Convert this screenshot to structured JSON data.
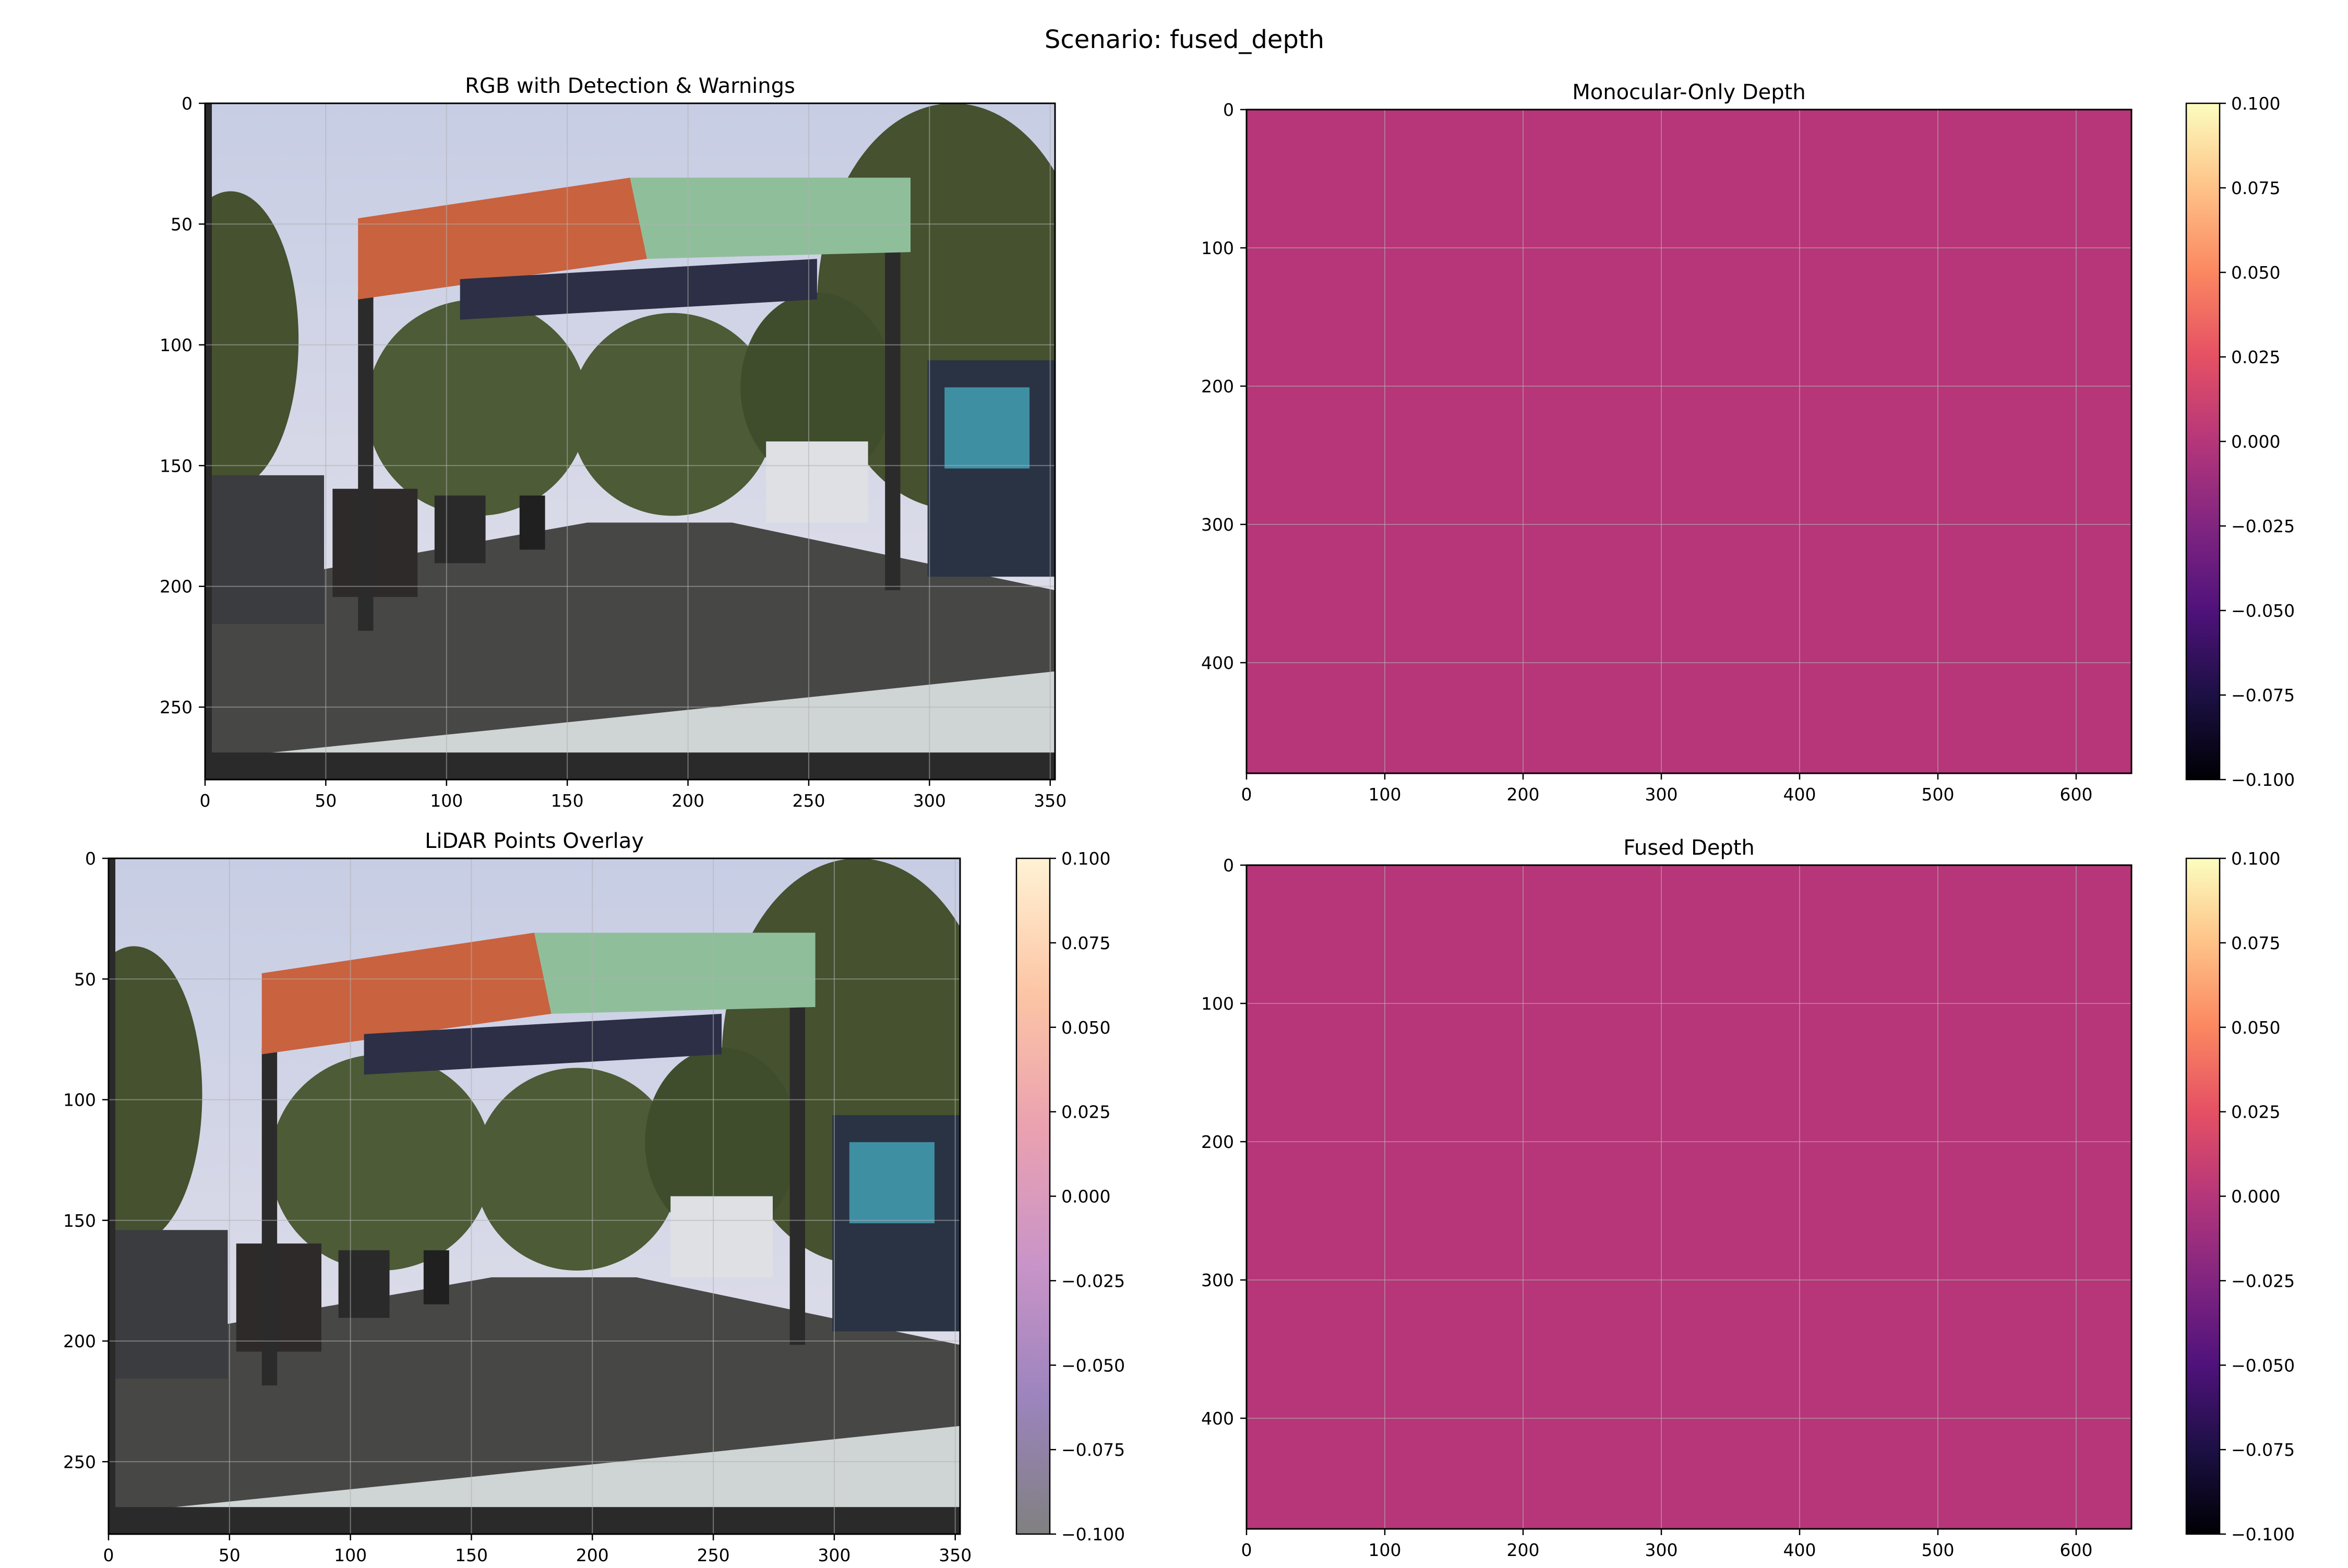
{
  "figure": {
    "suptitle": "Scenario: fused_depth"
  },
  "colors": {
    "frame": "#000000",
    "grid": "#b0b0b0",
    "heatmap_fill": "#b63679",
    "sky_top": "#c7cde4",
    "sky_bottom": "#e4e2ea",
    "road": "#474746",
    "trees": "#4d5b36",
    "billboard_orange": "#c9623f",
    "billboard_green": "#8fbf9a",
    "banner_dark": "#2c2f45",
    "dashboard": "#cfd4d4",
    "magma": [
      "#000004",
      "#1c1044",
      "#4f127b",
      "#812581",
      "#b5367a",
      "#e55064",
      "#fb8761",
      "#fec287",
      "#fcfdbf"
    ],
    "lidar_cmap": [
      "#808080",
      "#9c84bd",
      "#c994c8",
      "#eaa1b0",
      "#fcc5a5",
      "#fff2d4"
    ]
  },
  "chart_data": [
    {
      "type": "image",
      "title": "RGB with Detection & Warnings",
      "xlim": [
        0,
        352
      ],
      "ylim": [
        280,
        0
      ],
      "xticks": [
        0,
        50,
        100,
        150,
        200,
        250,
        300,
        350
      ],
      "yticks": [
        0,
        50,
        100,
        150,
        200,
        250
      ],
      "grid": true
    },
    {
      "type": "heatmap",
      "title": "Monocular-Only Depth",
      "xlim": [
        0,
        640
      ],
      "ylim": [
        480,
        0
      ],
      "xticks": [
        0,
        100,
        200,
        300,
        400,
        500,
        600
      ],
      "yticks": [
        0,
        100,
        200,
        300,
        400
      ],
      "grid": true,
      "value": 0.0,
      "colorbar": {
        "cmap": "magma",
        "range": [
          -0.1,
          0.1
        ],
        "ticks": [
          "0.100",
          "0.075",
          "0.050",
          "0.025",
          "0.000",
          "−0.025",
          "−0.050",
          "−0.075",
          "−0.100"
        ]
      }
    },
    {
      "type": "image",
      "title": "LiDAR Points Overlay",
      "xlim": [
        0,
        352
      ],
      "ylim": [
        280,
        0
      ],
      "xticks": [
        0,
        50,
        100,
        150,
        200,
        250,
        300,
        350
      ],
      "yticks": [
        0,
        50,
        100,
        150,
        200,
        250
      ],
      "grid": true,
      "colorbar": {
        "cmap": "lidar",
        "range": [
          -0.1,
          0.1
        ],
        "ticks": [
          "0.100",
          "0.075",
          "0.050",
          "0.025",
          "0.000",
          "−0.025",
          "−0.050",
          "−0.075",
          "−0.100"
        ]
      }
    },
    {
      "type": "heatmap",
      "title": "Fused Depth",
      "xlim": [
        0,
        640
      ],
      "ylim": [
        480,
        0
      ],
      "xticks": [
        0,
        100,
        200,
        300,
        400,
        500,
        600
      ],
      "yticks": [
        0,
        100,
        200,
        300,
        400
      ],
      "grid": true,
      "value": 0.0,
      "colorbar": {
        "cmap": "magma",
        "range": [
          -0.1,
          0.1
        ],
        "ticks": [
          "0.100",
          "0.075",
          "0.050",
          "0.025",
          "0.000",
          "−0.025",
          "−0.050",
          "−0.075",
          "−0.100"
        ]
      }
    }
  ]
}
